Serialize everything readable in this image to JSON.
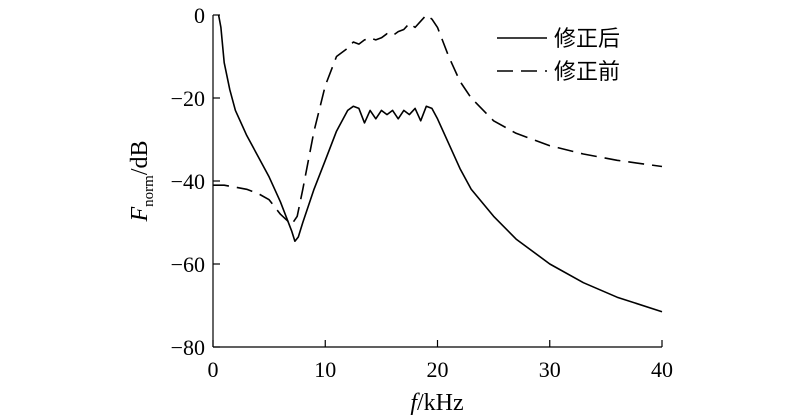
{
  "chart_data": {
    "type": "line",
    "xlabel": {
      "symbol": "f",
      "unit": "/kHz"
    },
    "ylabel": {
      "symbol": "F",
      "subscript": "norm",
      "unit": "/dB"
    },
    "xlim": [
      0,
      40
    ],
    "ylim": [
      -80,
      0
    ],
    "xticks": [
      0,
      10,
      20,
      30,
      40
    ],
    "yticks": [
      0,
      -20,
      -40,
      -60,
      -80
    ],
    "grid": false,
    "legend_position": "top-right",
    "series": [
      {
        "name": "修正后",
        "style": "solid",
        "x": [
          0.5,
          0.7,
          1.0,
          1.5,
          2.0,
          3.0,
          4.0,
          5.0,
          6.0,
          7.0,
          7.3,
          7.6,
          8.0,
          9.0,
          10.0,
          11.0,
          12.0,
          12.5,
          13.0,
          13.5,
          14.0,
          14.5,
          15.0,
          15.5,
          16.0,
          16.5,
          17.0,
          17.5,
          18.0,
          18.5,
          19.0,
          19.5,
          20.0,
          21.0,
          22.0,
          23.0,
          25.0,
          27.0,
          30.0,
          33.0,
          36.0,
          40.0
        ],
        "y": [
          0,
          -3,
          -11.5,
          -18,
          -23,
          -29,
          -34,
          -39,
          -45,
          -52,
          -54.5,
          -53.5,
          -50,
          -42,
          -35,
          -28,
          -23,
          -22,
          -22.5,
          -26,
          -23,
          -25,
          -23,
          -24,
          -23,
          -25,
          -23,
          -24,
          -22.5,
          -25.5,
          -22,
          -22.5,
          -25,
          -31,
          -37,
          -42,
          -48.5,
          -54,
          -60,
          -64.5,
          -68,
          -71.5
        ]
      },
      {
        "name": "修正前",
        "style": "dashed",
        "x": [
          0,
          1.0,
          2.0,
          3.0,
          4.0,
          5.0,
          6.0,
          7.0,
          7.5,
          8.0,
          9.0,
          10.0,
          11.0,
          12.0,
          12.5,
          13.0,
          13.5,
          14.0,
          14.5,
          15.0,
          15.5,
          16.0,
          16.5,
          17.0,
          17.5,
          18.0,
          18.5,
          19.0,
          19.5,
          20.0,
          21.0,
          22.0,
          23.0,
          25.0,
          27.0,
          30.0,
          33.0,
          36.0,
          40.0
        ],
        "y": [
          -41,
          -41,
          -41.5,
          -42,
          -43,
          -44.5,
          -48,
          -50.5,
          -48.5,
          -42,
          -28,
          -17,
          -10,
          -8,
          -6.5,
          -7,
          -6,
          -5.5,
          -6,
          -5.5,
          -4.5,
          -5,
          -4,
          -3.5,
          -2,
          -3,
          -1.5,
          0,
          -1,
          -3,
          -10,
          -16,
          -20,
          -25.5,
          -28.5,
          -31.5,
          -33.5,
          -35,
          -36.5
        ]
      }
    ]
  }
}
